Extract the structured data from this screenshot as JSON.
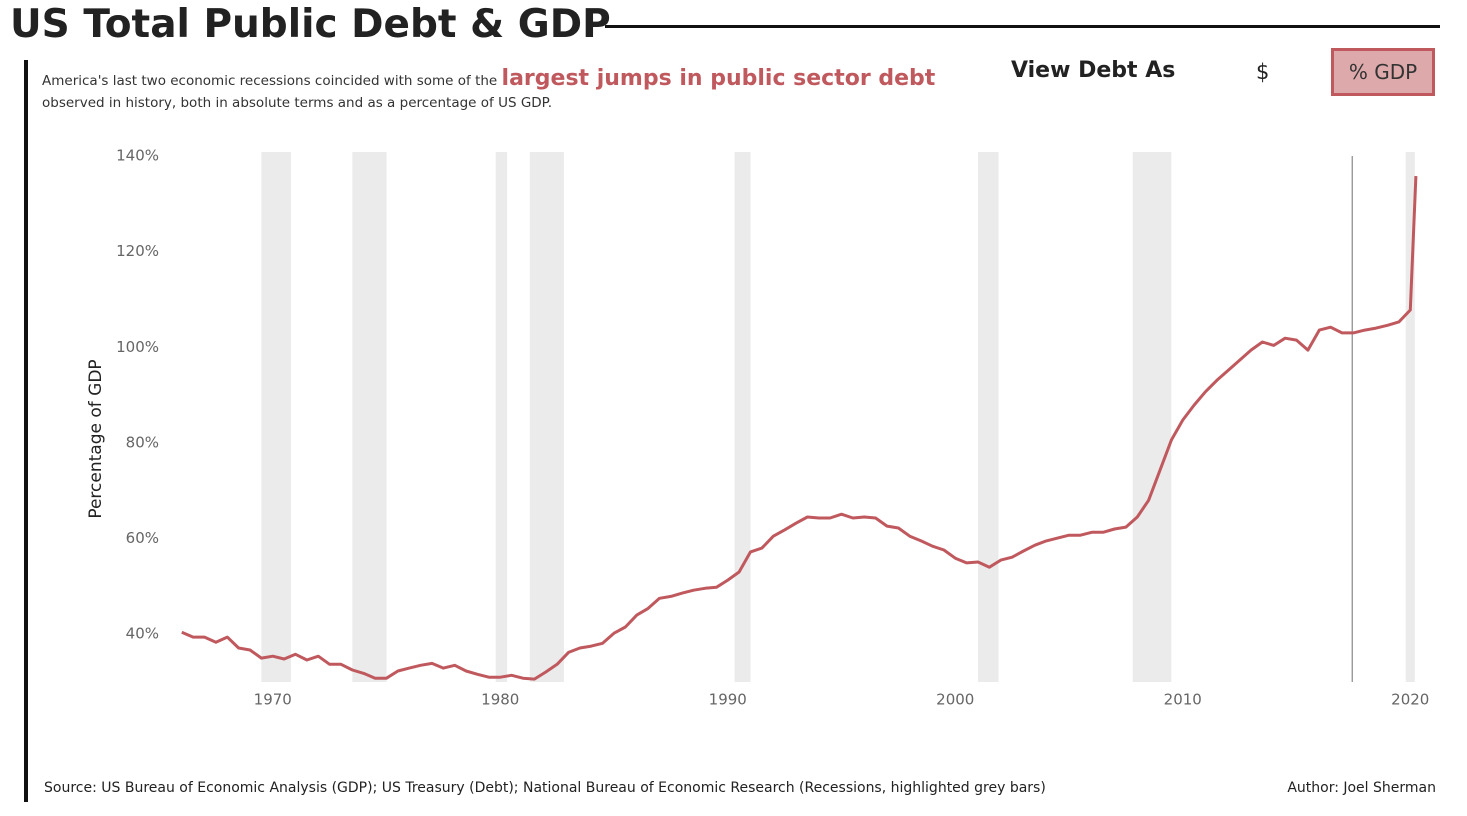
{
  "header": {
    "title": "US Total Public Debt & GDP",
    "subtitle_lead": "America's last two economic recessions coincided with some of the",
    "subtitle_highlight": "largest jumps in public sector debt",
    "subtitle_rest": "observed in history, both in absolute terms and as a percentage of US GDP."
  },
  "toggle": {
    "label": "View Debt As",
    "options": [
      "$",
      "% GDP"
    ],
    "selected": "% GDP"
  },
  "chart_data": {
    "type": "line",
    "y_axis_label": "Percentage of GDP",
    "color": "#c0595e",
    "x": [
      1966,
      1966.5,
      1967,
      1967.5,
      1968,
      1968.5,
      1969,
      1969.5,
      1970,
      1970.5,
      1971,
      1971.5,
      1972,
      1972.5,
      1973,
      1973.5,
      1974,
      1974.5,
      1975,
      1975.5,
      1976,
      1976.5,
      1977,
      1977.5,
      1978,
      1978.5,
      1979,
      1979.5,
      1980,
      1980.5,
      1981,
      1981.5,
      1982,
      1982.5,
      1983,
      1983.5,
      1984,
      1984.5,
      1985,
      1985.5,
      1986,
      1986.5,
      1987,
      1987.5,
      1988,
      1988.5,
      1989,
      1989.5,
      1990,
      1990.5,
      1991,
      1991.5,
      1992,
      1992.5,
      1993,
      1993.5,
      1994,
      1994.5,
      1995,
      1995.5,
      1996,
      1996.5,
      1997,
      1997.5,
      1998,
      1998.5,
      1999,
      1999.5,
      2000,
      2000.5,
      2001,
      2001.5,
      2002,
      2002.5,
      2003,
      2003.5,
      2004,
      2004.5,
      2005,
      2005.5,
      2006,
      2006.5,
      2007,
      2007.5,
      2008,
      2008.5,
      2009,
      2009.5,
      2010,
      2010.5,
      2011,
      2011.5,
      2012,
      2012.5,
      2013,
      2013.5,
      2014,
      2014.5,
      2015,
      2015.5,
      2016,
      2016.5,
      2017,
      2017.5,
      2018,
      2018.5,
      2019,
      2019.5,
      2020,
      2020.25
    ],
    "values": [
      40.4,
      39.4,
      39.4,
      38.3,
      39.4,
      37.1,
      36.7,
      35.0,
      35.4,
      34.8,
      35.8,
      34.6,
      35.4,
      33.7,
      33.7,
      32.5,
      31.8,
      30.8,
      30.8,
      32.3,
      32.9,
      33.5,
      33.9,
      32.9,
      33.5,
      32.3,
      31.6,
      31.0,
      31.0,
      31.4,
      30.8,
      30.6,
      32.1,
      33.7,
      36.2,
      37.1,
      37.5,
      38.1,
      40.2,
      41.5,
      44.0,
      45.4,
      47.5,
      47.9,
      48.6,
      49.2,
      49.6,
      49.8,
      51.3,
      53.0,
      57.2,
      58.0,
      60.5,
      61.8,
      63.2,
      64.5,
      64.3,
      64.3,
      65.1,
      64.3,
      64.5,
      64.3,
      62.6,
      62.2,
      60.5,
      59.5,
      58.4,
      57.6,
      55.9,
      54.9,
      55.1,
      54.0,
      55.5,
      56.1,
      57.4,
      58.6,
      59.5,
      60.1,
      60.7,
      60.7,
      61.3,
      61.3,
      62.0,
      62.4,
      64.5,
      68.0,
      74.3,
      80.6,
      84.8,
      87.9,
      90.7,
      93.1,
      95.2,
      97.3,
      99.4,
      101.1,
      100.4,
      101.9,
      101.5,
      99.4,
      103.6,
      104.2,
      103.0,
      103.0,
      103.6,
      104.0,
      104.6,
      105.3,
      107.8,
      135.8
    ],
    "recessions": [
      [
        1969.5,
        1970.8
      ],
      [
        1973.5,
        1975.0
      ],
      [
        1979.8,
        1980.3
      ],
      [
        1981.3,
        1982.8
      ],
      [
        1990.3,
        1991.0
      ],
      [
        2001.0,
        2001.9
      ],
      [
        2007.8,
        2009.5
      ],
      [
        2019.8,
        2020.2
      ]
    ],
    "reference_x": 2017.45,
    "xlim": [
      1965,
      2021
    ],
    "ylim": [
      30,
      140
    ],
    "xticks": [
      1970,
      1980,
      1990,
      2000,
      2010,
      2020
    ],
    "yticks": [
      {
        "value": 40,
        "label": "40%"
      },
      {
        "value": 60,
        "label": "60%"
      },
      {
        "value": 80,
        "label": "80%"
      },
      {
        "value": 100,
        "label": "100%"
      },
      {
        "value": 120,
        "label": "120%"
      },
      {
        "value": 140,
        "label": "140%"
      }
    ]
  },
  "footer": {
    "source": "Source: US Bureau of Economic Analysis (GDP); US Treasury (Debt); National Bureau of Economic Research (Recessions, highlighted grey bars)",
    "author": "Author: Joel Sherman"
  }
}
